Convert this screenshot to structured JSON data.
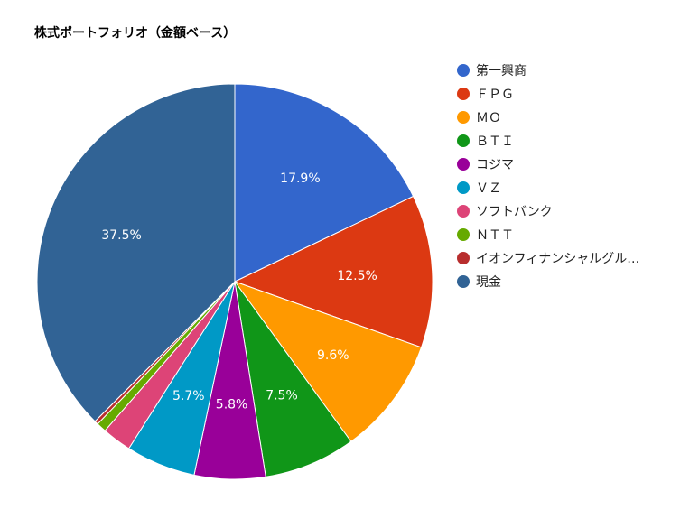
{
  "chart_data": {
    "type": "pie",
    "title": "株式ポートフォリオ（金額ベース）",
    "legend_position": "right",
    "slices": [
      {
        "label": "第一興商",
        "value": 17.9,
        "display": "17.9%",
        "color": "#3366cc"
      },
      {
        "label": "ＦＰＧ",
        "value": 12.5,
        "display": "12.5%",
        "color": "#dc3912"
      },
      {
        "label": "ＭＯ",
        "value": 9.6,
        "display": "9.6%",
        "color": "#ff9900"
      },
      {
        "label": "ＢＴＩ",
        "value": 7.5,
        "display": "7.5%",
        "color": "#109618"
      },
      {
        "label": "コジマ",
        "value": 5.8,
        "display": "5.8%",
        "color": "#990099"
      },
      {
        "label": "ＶＺ",
        "value": 5.7,
        "display": "5.7%",
        "color": "#0099c6"
      },
      {
        "label": "ソフトバンク",
        "value": 2.4,
        "display": "",
        "color": "#dd4477"
      },
      {
        "label": "ＮＴＴ",
        "value": 0.8,
        "display": "",
        "color": "#66aa00"
      },
      {
        "label": "イオンフィナンシャルグル…",
        "value": 0.3,
        "display": "",
        "color": "#b82e2e"
      },
      {
        "label": "現金",
        "value": 37.5,
        "display": "37.5%",
        "color": "#316395"
      }
    ]
  }
}
